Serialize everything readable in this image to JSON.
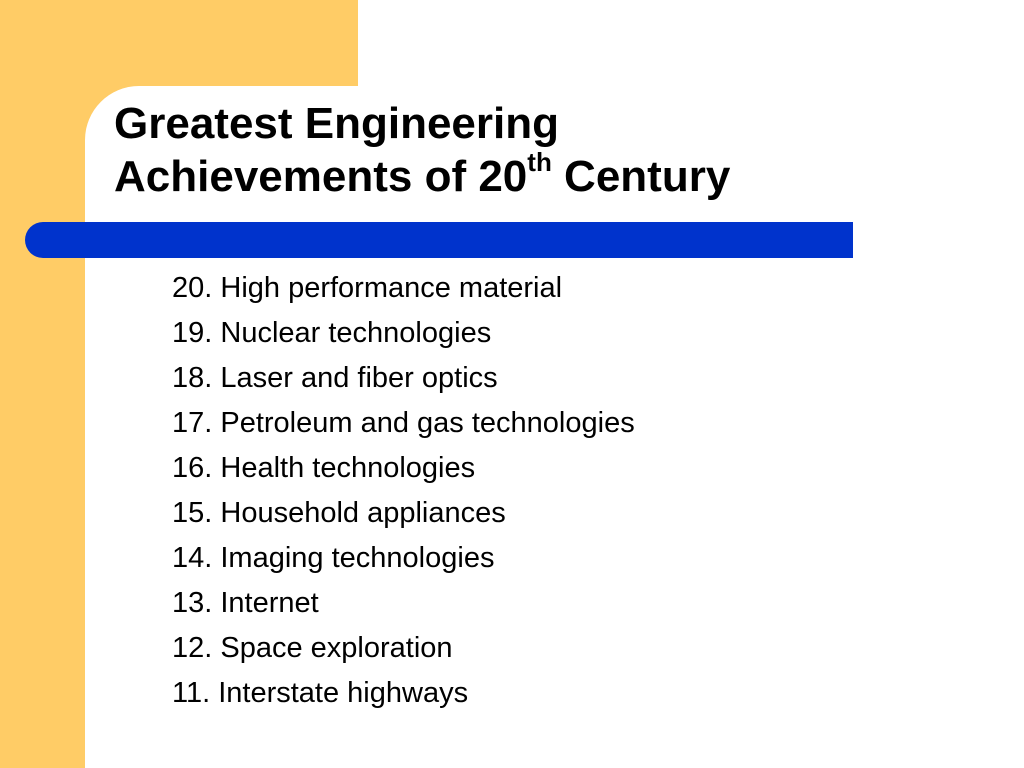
{
  "slide": {
    "title": {
      "line1": "Greatest Engineering",
      "line2_prefix": "Achievements of 20",
      "line2_superscript": "th",
      "line2_suffix": " Century"
    },
    "items": [
      "20. High performance material",
      "19. Nuclear technologies",
      "18. Laser and fiber optics",
      "17. Petroleum and gas technologies",
      "16. Health technologies",
      "15. Household appliances",
      "14. Imaging technologies",
      "13. Internet",
      "12. Space exploration",
      "11. Interstate highways"
    ]
  },
  "colors": {
    "accent_yellow": "#FFCC66",
    "accent_blue": "#0033CC",
    "background": "#FFFFFF",
    "text": "#000000"
  }
}
